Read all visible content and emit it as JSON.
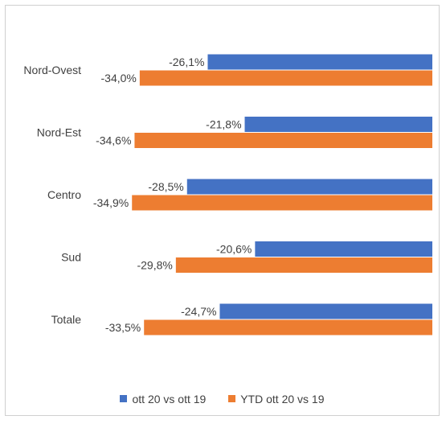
{
  "chart_data": {
    "type": "bar",
    "orientation": "horizontal",
    "categories": [
      "Nord-Ovest",
      "Nord-Est",
      "Centro",
      "Sud",
      "Totale"
    ],
    "series": [
      {
        "name": "ott 20 vs ott 19",
        "color": "#4472C4",
        "values": [
          -26.1,
          -21.8,
          -28.5,
          -20.6,
          -24.7
        ],
        "labels": [
          "-26,1%",
          "-21,8%",
          "-28,5%",
          "-20,6%",
          "-24,7%"
        ]
      },
      {
        "name": "YTD ott 20 vs 19",
        "color": "#ED7D31",
        "values": [
          -34.0,
          -34.6,
          -34.9,
          -29.8,
          -33.5
        ],
        "labels": [
          "-34,0%",
          "-34,6%",
          "-34,9%",
          "-29,8%",
          "-33,5%"
        ]
      }
    ],
    "xlim": [
      -40,
      0
    ],
    "grid": false,
    "legend_position": "bottom"
  }
}
